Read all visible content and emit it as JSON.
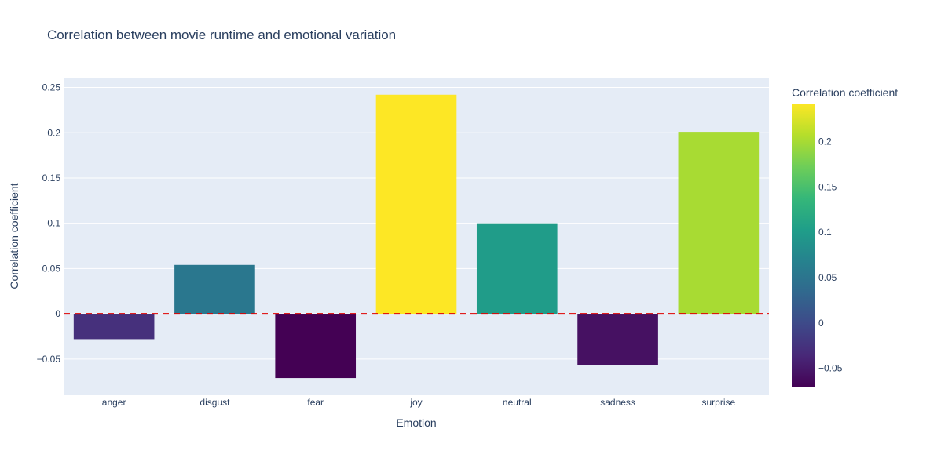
{
  "chart_data": {
    "type": "bar",
    "title": "Correlation between movie runtime and emotional variation",
    "xlabel": "Emotion",
    "ylabel": "Correlation coefficient",
    "categories": [
      "anger",
      "disgust",
      "fear",
      "joy",
      "neutral",
      "sadness",
      "surprise"
    ],
    "values": [
      -0.028,
      0.054,
      -0.071,
      0.242,
      0.1,
      -0.057,
      0.201
    ],
    "ylim": [
      -0.09,
      0.26
    ],
    "yticks": [
      -0.05,
      0,
      0.05,
      0.1,
      0.15,
      0.2,
      0.25
    ],
    "ytick_labels": [
      "−0.05",
      "0",
      "0.05",
      "0.1",
      "0.15",
      "0.2",
      "0.25"
    ],
    "reference_line": {
      "y": 0,
      "style": "dashed",
      "color": "#e00000"
    },
    "grid": true,
    "colorbar": {
      "title": "Correlation coefficient",
      "colorscale": "Viridis",
      "range": [
        -0.071,
        0.242
      ],
      "ticks": [
        -0.05,
        0,
        0.05,
        0.1,
        0.15,
        0.2
      ],
      "tick_labels": [
        "−0.05",
        "0",
        "0.05",
        "0.1",
        "0.15",
        "0.2"
      ],
      "placement": "right"
    },
    "colors": {
      "plot_background": "#e5ecf6",
      "text": "#2a3f5f",
      "gridline": "#ffffff"
    }
  }
}
